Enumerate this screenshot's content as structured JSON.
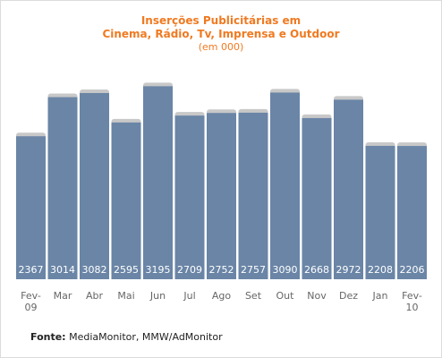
{
  "header": {
    "title_line1": "Inserções Publicitárias em",
    "title_line2": "Cinema, Rádio, Tv, Imprensa e Outdoor",
    "subtitle": "(em 000)"
  },
  "chart_data": {
    "type": "bar",
    "title": "Inserções Publicitárias em Cinema, Rádio, Tv, Imprensa e Outdoor",
    "subtitle": "(em 000)",
    "categories": [
      [
        "Fev-",
        "09"
      ],
      [
        "Mar"
      ],
      [
        "Abr"
      ],
      [
        "Mai"
      ],
      [
        "Jun"
      ],
      [
        "Jul"
      ],
      [
        "Ago"
      ],
      [
        "Set"
      ],
      [
        "Out"
      ],
      [
        "Nov"
      ],
      [
        "Dez"
      ],
      [
        "Jan"
      ],
      [
        "Fev-",
        "10"
      ]
    ],
    "values": [
      2367,
      3014,
      3082,
      2595,
      3195,
      2709,
      2752,
      2757,
      3090,
      2668,
      2972,
      2208,
      2206
    ],
    "bar_color": "#6a85a6",
    "bar_shadow_color": "#c8c8c8",
    "label_color": "#ffffff",
    "grid": false,
    "legend": "none"
  },
  "source": {
    "label": "Fonte:",
    "text": " MediaMonitor, MMW/AdMonitor"
  }
}
